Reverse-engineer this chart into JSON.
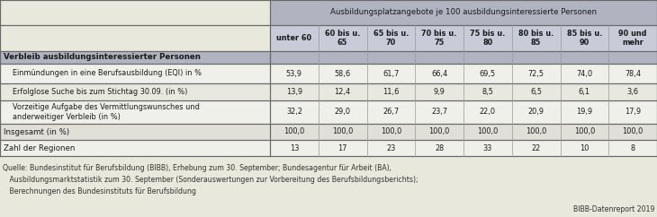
{
  "title_header": "Ausbildungsplatzangebote je 100 ausbildungsinteressierte Personen",
  "col_headers": [
    "unter 60",
    "60 bis u.\n65",
    "65 bis u.\n70",
    "70 bis u.\n75",
    "75 bis u.\n80",
    "80 bis u.\n85",
    "85 bis u.\n90",
    "90 und\nmehr"
  ],
  "section_label": "Verbleib ausbildungsinteressierter Personen",
  "row_labels": [
    "Einmündungen in eine Berufsausbildung (EQI) in %",
    "Erfolglose Suche bis zum Stichtag 30.09. (in %)",
    "Vorzeitige Aufgabe des Vermittlungswunsches und\nanderweitiger Verbleib (in %)"
  ],
  "row_data": [
    [
      "53,9",
      "58,6",
      "61,7",
      "66,4",
      "69,5",
      "72,5",
      "74,0",
      "78,4"
    ],
    [
      "13,9",
      "12,4",
      "11,6",
      "9,9",
      "8,5",
      "6,5",
      "6,1",
      "3,6"
    ],
    [
      "32,2",
      "29,0",
      "26,7",
      "23,7",
      "22,0",
      "20,9",
      "19,9",
      "17,9"
    ]
  ],
  "total_label": "Insgesamt (in %)",
  "total_data": [
    "100,0",
    "100,0",
    "100,0",
    "100,0",
    "100,0",
    "100,0",
    "100,0",
    "100,0"
  ],
  "regions_label": "Zahl der Regionen",
  "regions_data": [
    "13",
    "17",
    "23",
    "28",
    "33",
    "22",
    "10",
    "8"
  ],
  "footnote_lines": [
    "Quelle: Bundesinstitut für Berufsbildung (BIBB), Erhebung zum 30. September; Bundesagentur für Arbeit (BA),",
    "   Ausbildungsmarktstatistik zum 30. September (Sonderauswertungen zur Vorbereitung des Berufsbildungsberichts);",
    "   Berechnungen des Bundesinstituts für Berufsbildung"
  ],
  "bibb_label": "BIBB-Datenreport 2019",
  "bg_color": "#e8e8dc",
  "header_bg": "#b0b4c0",
  "col_header_bg": "#c8ccd8",
  "section_bg": "#b0b4c0",
  "row1_bg": "#f0f0ea",
  "row2_bg": "#e8e8e0",
  "row3_bg": "#f0f0ea",
  "total_bg": "#e0e0d8",
  "regions_bg": "#f0f0ea",
  "border_dark": "#6a6a6a",
  "border_light": "#999990"
}
